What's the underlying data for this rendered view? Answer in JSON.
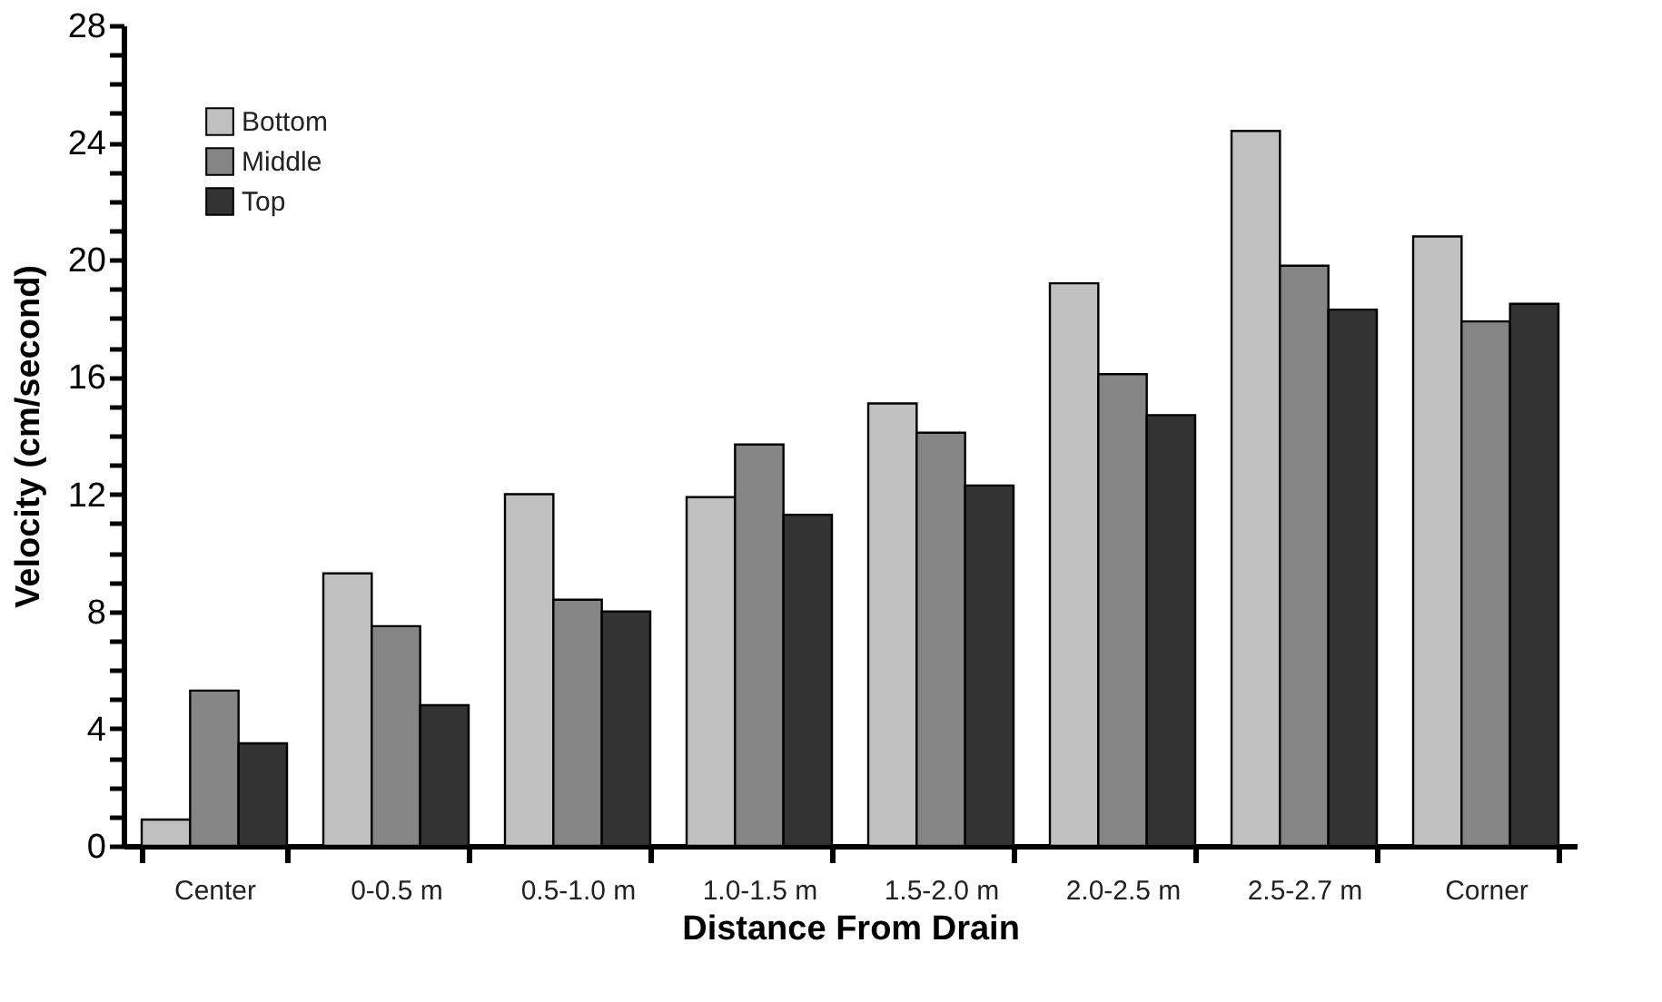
{
  "chart_data": {
    "type": "bar",
    "xlabel": "Distance From Drain",
    "ylabel": "Velocity (cm/second)",
    "categories": [
      "Center",
      "0-0.5 m",
      "0.5-1.0 m",
      "1.0-1.5 m",
      "1.5-2.0 m",
      "2.0-2.5 m",
      "2.5-2.7 m",
      "Corner"
    ],
    "series": [
      {
        "name": "Bottom",
        "color": "#c0c0c0",
        "values": [
          0.9,
          9.3,
          12.0,
          11.9,
          15.1,
          19.2,
          24.4,
          20.8
        ]
      },
      {
        "name": "Middle",
        "color": "#858585",
        "values": [
          5.3,
          7.5,
          8.4,
          13.7,
          14.1,
          16.1,
          19.8,
          17.9
        ]
      },
      {
        "name": "Top",
        "color": "#333333",
        "values": [
          3.5,
          4.8,
          8.0,
          11.3,
          12.3,
          14.7,
          18.3,
          18.5
        ]
      }
    ],
    "ylim": [
      0,
      28
    ],
    "yticks": [
      0,
      {
        "value": 1,
        "label": null
      },
      {
        "value": 2,
        "label": null
      },
      {
        "value": 3,
        "label": null
      },
      4,
      {
        "value": 5,
        "label": null
      },
      {
        "value": 6,
        "label": null
      },
      {
        "value": 7,
        "label": null
      },
      8,
      {
        "value": 9,
        "label": null
      },
      {
        "value": 10,
        "label": null
      },
      {
        "value": 11,
        "label": null
      },
      12,
      {
        "value": 13,
        "label": null
      },
      {
        "value": 14,
        "label": null
      },
      {
        "value": 15,
        "label": null
      },
      16,
      {
        "value": 17,
        "label": null
      },
      {
        "value": 18,
        "label": null
      },
      {
        "value": 19,
        "label": null
      },
      20,
      {
        "value": 21,
        "label": null
      },
      {
        "value": 22,
        "label": null
      },
      {
        "value": 23,
        "label": null
      },
      24,
      {
        "value": 25,
        "label": null
      },
      {
        "value": 26,
        "label": null
      },
      {
        "value": 27,
        "label": null
      },
      28
    ],
    "legend": "top left",
    "grid": false
  }
}
